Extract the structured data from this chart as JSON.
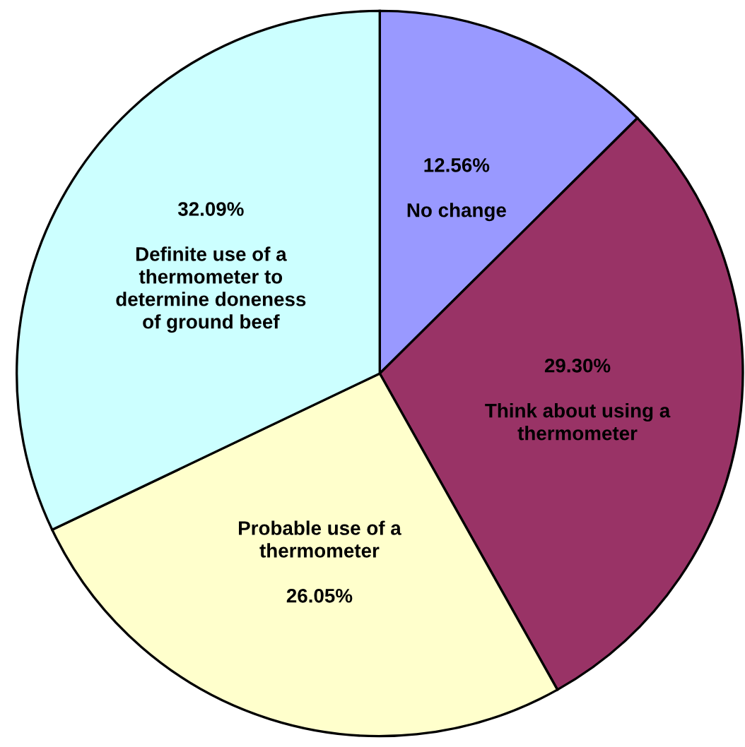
{
  "chart_data": {
    "type": "pie",
    "categories": [
      "No change",
      "Think about using a\nthermometer",
      "Probable use of a\nthermometer",
      "Definite use of a\nthermometer to\ndetermine doneness\nof ground beef"
    ],
    "values": [
      12.56,
      29.3,
      26.05,
      32.09
    ],
    "value_labels": [
      "12.56%",
      "29.30%",
      "26.05%",
      "32.09%"
    ],
    "colors": [
      "#9999ff",
      "#993366",
      "#ffffcc",
      "#ccffff"
    ],
    "legend": false
  }
}
